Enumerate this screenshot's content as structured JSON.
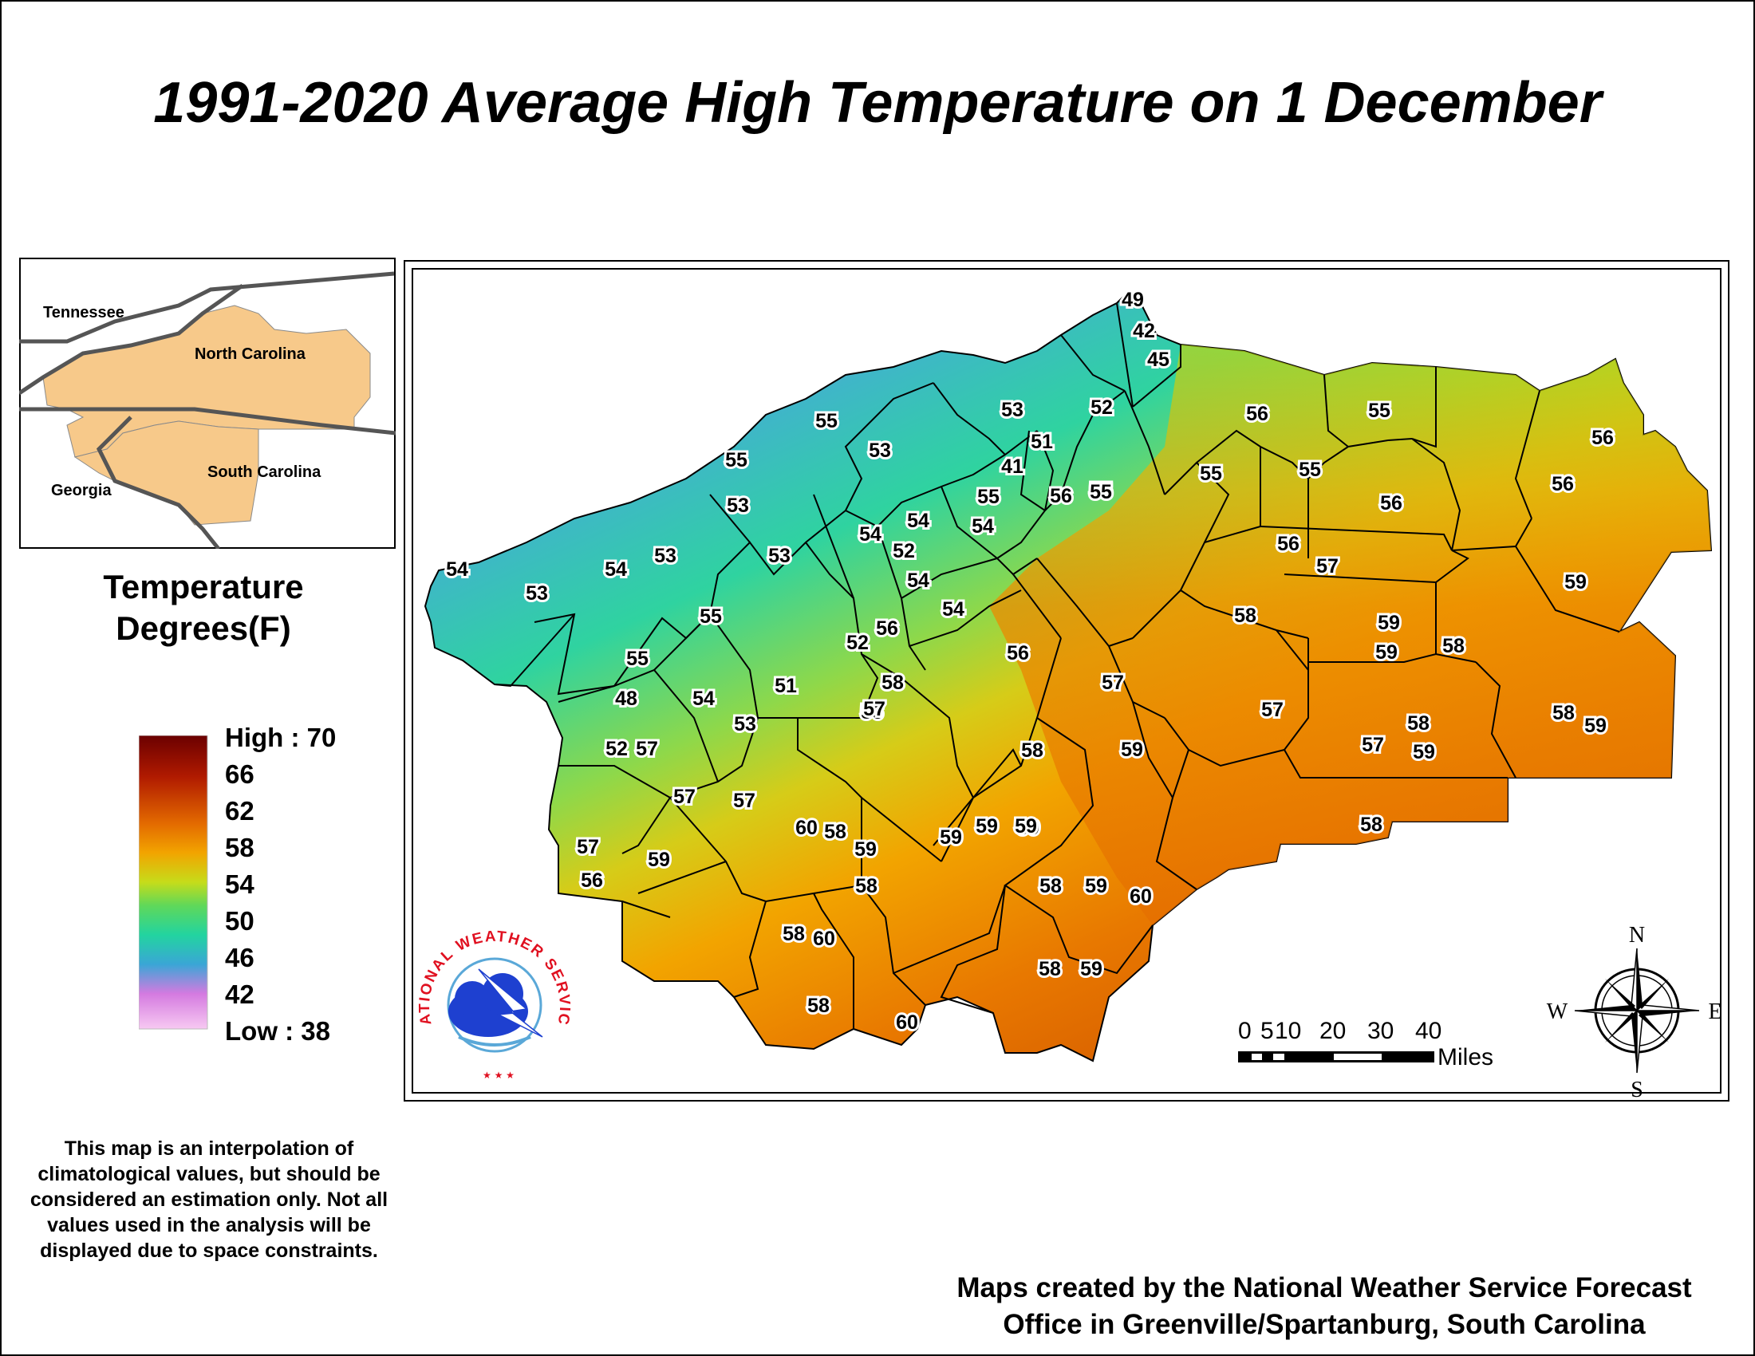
{
  "title": "1991-2020 Average High Temperature on 1 December",
  "inset": {
    "labels": [
      {
        "text": "Tennessee"
      },
      {
        "text": "North Carolina"
      },
      {
        "text": "South Carolina"
      },
      {
        "text": "Georgia"
      }
    ]
  },
  "legend": {
    "title_line1": "Temperature",
    "title_line2": "Degrees(F)",
    "high_label": "High : 70",
    "low_label": "Low : 38",
    "ticks": [
      "66",
      "62",
      "58",
      "54",
      "50",
      "46",
      "42"
    ],
    "colors": [
      "#6b0000",
      "#b01a00",
      "#e36a00",
      "#f2a400",
      "#c6dc1a",
      "#5fd85a",
      "#22d4a0",
      "#3aa6d6",
      "#d47ae0",
      "#f7c9f2"
    ]
  },
  "map_values": [
    {
      "label": "49"
    },
    {
      "label": "42"
    },
    {
      "label": "45"
    },
    {
      "label": "52"
    },
    {
      "label": "53"
    },
    {
      "label": "51"
    },
    {
      "label": "41"
    },
    {
      "label": "55"
    },
    {
      "label": "53"
    },
    {
      "label": "55"
    },
    {
      "label": "55"
    },
    {
      "label": "53"
    },
    {
      "label": "53"
    },
    {
      "label": "54"
    },
    {
      "label": "53"
    },
    {
      "label": "54"
    },
    {
      "label": "53"
    },
    {
      "label": "54"
    },
    {
      "label": "54"
    },
    {
      "label": "52"
    },
    {
      "label": "54"
    },
    {
      "label": "55"
    },
    {
      "label": "56"
    },
    {
      "label": "55"
    },
    {
      "label": "54"
    },
    {
      "label": "55"
    },
    {
      "label": "54"
    },
    {
      "label": "56"
    },
    {
      "label": "52"
    },
    {
      "label": "51"
    },
    {
      "label": "58"
    },
    {
      "label": "48"
    },
    {
      "label": "54"
    },
    {
      "label": "53"
    },
    {
      "label": "52"
    },
    {
      "label": "57"
    },
    {
      "label": "56"
    },
    {
      "label": "57"
    },
    {
      "label": "57"
    },
    {
      "label": "60"
    },
    {
      "label": "58"
    },
    {
      "label": "57"
    },
    {
      "label": "56"
    },
    {
      "label": "59"
    },
    {
      "label": "59"
    },
    {
      "label": "58"
    },
    {
      "label": "59"
    },
    {
      "label": "59"
    },
    {
      "label": "58"
    },
    {
      "label": "60"
    },
    {
      "label": "58"
    },
    {
      "label": "60"
    },
    {
      "label": "57"
    },
    {
      "label": "58"
    },
    {
      "label": "57"
    },
    {
      "label": "59"
    },
    {
      "label": "58"
    },
    {
      "label": "59"
    },
    {
      "label": "59"
    },
    {
      "label": "59"
    },
    {
      "label": "60"
    },
    {
      "label": "58"
    },
    {
      "label": "59"
    },
    {
      "label": "56"
    },
    {
      "label": "55"
    },
    {
      "label": "55"
    },
    {
      "label": "56"
    },
    {
      "label": "55"
    },
    {
      "label": "56"
    },
    {
      "label": "55"
    },
    {
      "label": "56"
    },
    {
      "label": "56"
    },
    {
      "label": "56"
    },
    {
      "label": "57"
    },
    {
      "label": "58"
    },
    {
      "label": "59"
    },
    {
      "label": "59"
    },
    {
      "label": "59"
    },
    {
      "label": "58"
    },
    {
      "label": "57"
    },
    {
      "label": "57"
    },
    {
      "label": "58"
    },
    {
      "label": "59"
    },
    {
      "label": "58"
    },
    {
      "label": "59"
    },
    {
      "label": "58"
    }
  ],
  "scale_bar": {
    "ticks": [
      "0",
      "5",
      "10",
      "20",
      "30",
      "40"
    ],
    "unit": "Miles"
  },
  "compass": {
    "n": "N",
    "s": "S",
    "e": "E",
    "w": "W"
  },
  "logo": {
    "text": "NATIONAL WEATHER SERVICE"
  },
  "disclaimer": "This map is an interpolation of climatological values, but should be considered an estimation only. Not all values used in the analysis will be displayed due to space constraints.",
  "credit_line1": "Maps created by the National Weather Service Forecast",
  "credit_line2": "Office in Greenville/Spartanburg, South Carolina"
}
